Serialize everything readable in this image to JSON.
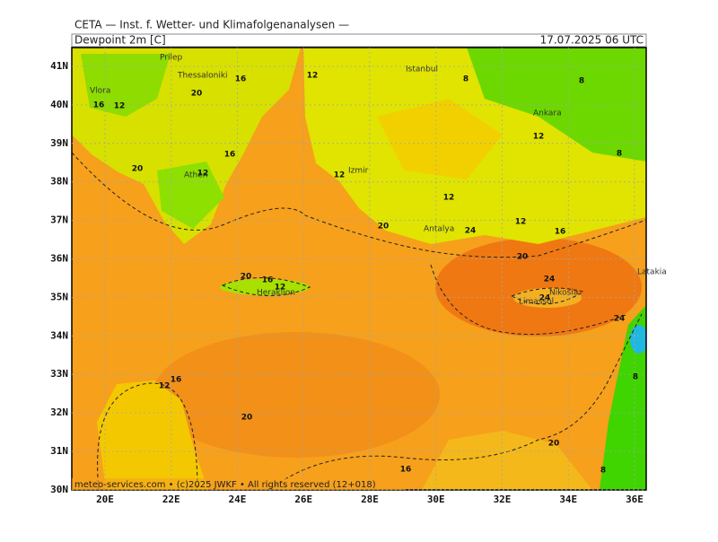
{
  "header": {
    "title": "CETA — Inst. f. Wetter- und Klimafolgenanalysen —",
    "field": "Dewpoint 2m [C]",
    "time": "17.07.2025 06 UTC"
  },
  "map": {
    "lat_labels": [
      "41N",
      "40N",
      "39N",
      "38N",
      "37N",
      "36N",
      "35N",
      "34N",
      "33N",
      "32N",
      "31N",
      "30N"
    ],
    "lon_labels": [
      "20E",
      "22E",
      "24E",
      "26E",
      "28E",
      "30E",
      "32E",
      "34E",
      "36E"
    ],
    "places": [
      "Prilep",
      "Thessaloniki",
      "Vlora",
      "Istanbul",
      "Ankara",
      "Izmir",
      "Athen",
      "Antalya",
      "Heraklion",
      "Nikosia",
      "Limassol",
      "Latakia"
    ],
    "contour_labels": [
      16,
      12,
      20,
      16,
      12,
      8,
      8,
      12,
      8,
      20,
      16,
      12,
      12,
      12,
      20,
      24,
      12,
      16,
      20,
      24,
      20,
      16,
      12,
      24,
      16,
      12,
      20,
      16,
      8,
      8,
      24,
      20
    ],
    "footer": "meteo-services.com • (c)2025 JWKF • All rights reserved (12+018)"
  }
}
